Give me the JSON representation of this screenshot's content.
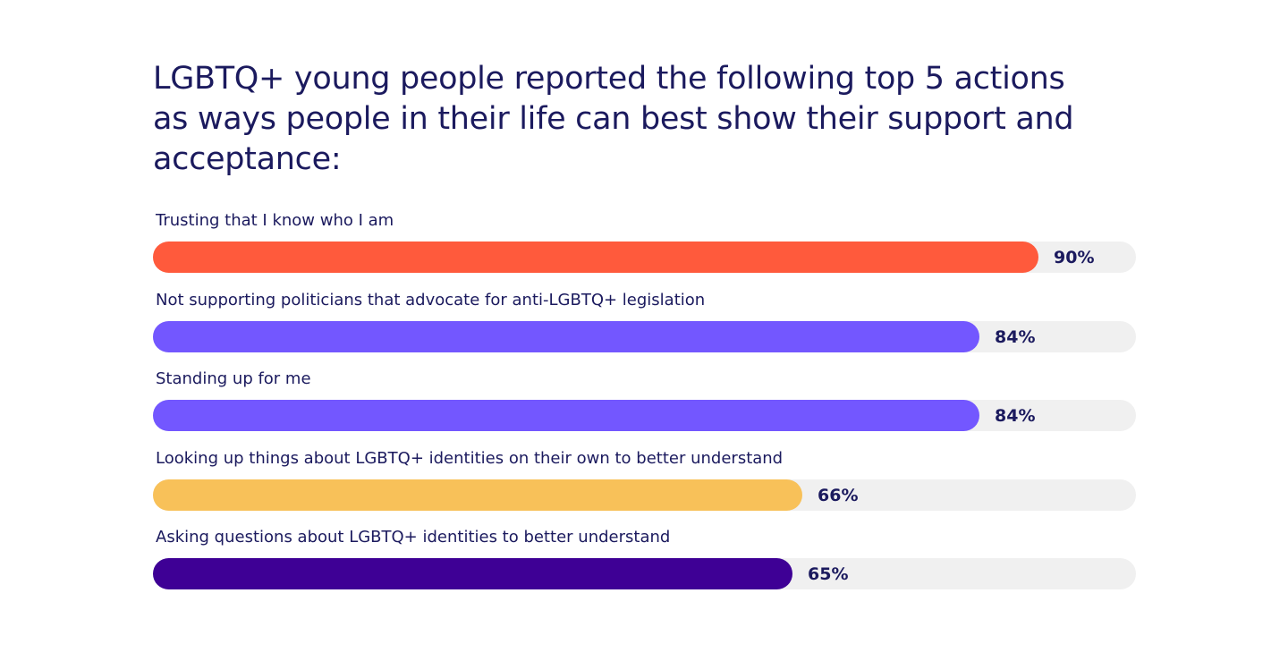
{
  "chart_data": {
    "type": "bar",
    "orientation": "horizontal",
    "title": "LGBTQ+ young people reported the following top 5 actions as ways people in their life can best show their support and acceptance:",
    "categories": [
      "Trusting that I know who I am",
      "Not supporting politicians that advocate for anti-LGBTQ+ legislation",
      "Standing up for me",
      "Looking up things about LGBTQ+ identities on their own to better understand",
      "Asking questions about LGBTQ+ identities to better understand"
    ],
    "values": [
      90,
      84,
      84,
      66,
      65
    ],
    "value_labels": [
      "90%",
      "84%",
      "84%",
      "66%",
      "65%"
    ],
    "colors": [
      "#ff5a3c",
      "#7357ff",
      "#7357ff",
      "#f8c159",
      "#3e0095"
    ],
    "track_color": "#f0f0f0",
    "xlim": [
      0,
      100
    ],
    "grid": false,
    "legend": false
  }
}
